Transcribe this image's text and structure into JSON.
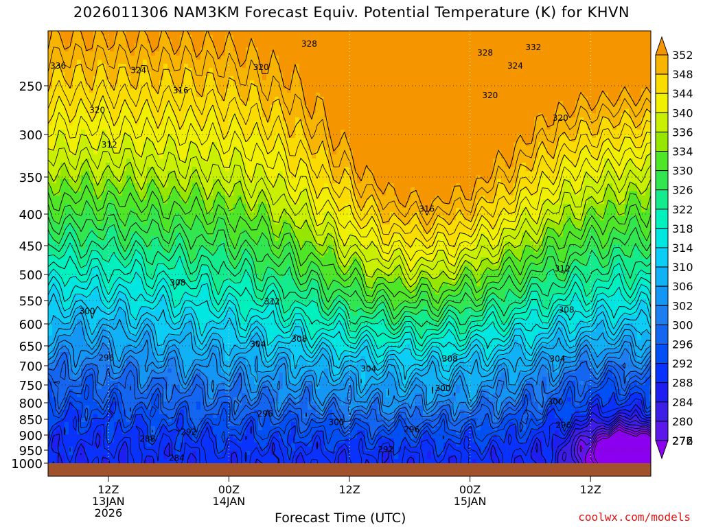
{
  "title": "2026011306 NAM3KM Forecast Equiv. Potential Temperature (K) for KHVN",
  "credit": "coolwx.com/models",
  "chart_data": {
    "type": "heatmap",
    "title": "2026011306 NAM3KM Forecast Equiv. Potential Temperature (K) for KHVN",
    "xlabel": "Forecast Time (UTC)",
    "ylabel": "",
    "x_range_hours": [
      0,
      60
    ],
    "y_axis": "pressure (mb)",
    "ylim": [
      1000,
      200
    ],
    "y_ticks": [
      250,
      300,
      350,
      400,
      450,
      500,
      550,
      600,
      650,
      700,
      750,
      800,
      850,
      900,
      950,
      1000
    ],
    "x_ticks": [
      {
        "hour": 6,
        "lines": [
          "12Z",
          "13JAN",
          "2026"
        ]
      },
      {
        "hour": 18,
        "lines": [
          "00Z",
          "14JAN"
        ]
      },
      {
        "hour": 30,
        "lines": [
          "12Z"
        ]
      },
      {
        "hour": 42,
        "lines": [
          "00Z",
          "15JAN"
        ]
      },
      {
        "hour": 54,
        "lines": [
          "12Z"
        ]
      }
    ],
    "colorbar": {
      "levels": [
        272,
        276,
        280,
        284,
        288,
        292,
        296,
        300,
        302,
        306,
        310,
        314,
        318,
        322,
        326,
        330,
        334,
        336,
        340,
        344,
        348,
        352
      ],
      "colors": [
        "#8c00f0",
        "#5a18ea",
        "#3c1ee6",
        "#1e1ef0",
        "#0a32ff",
        "#0050f5",
        "#1466f0",
        "#1e7ef0",
        "#1496f5",
        "#10b2f5",
        "#0ccdf5",
        "#00e6e1",
        "#00f0be",
        "#14eb8c",
        "#32e650",
        "#50e628",
        "#96e600",
        "#c8f000",
        "#f0f000",
        "#fadc00",
        "#f7b400",
        "#f59600"
      ]
    },
    "contour_labels": [
      {
        "value": "336",
        "hour": 1.0,
        "p": 232
      },
      {
        "value": "328",
        "hour": 26.0,
        "p": 212
      },
      {
        "value": "328",
        "hour": 43.5,
        "p": 220
      },
      {
        "value": "332",
        "hour": 48.3,
        "p": 215
      },
      {
        "value": "324",
        "hour": 9.0,
        "p": 236
      },
      {
        "value": "324",
        "hour": 46.5,
        "p": 232
      },
      {
        "value": "320",
        "hour": 21.2,
        "p": 233
      },
      {
        "value": "320",
        "hour": 44.0,
        "p": 260
      },
      {
        "value": "320",
        "hour": 51.0,
        "p": 283
      },
      {
        "value": "320",
        "hour": 4.9,
        "p": 275
      },
      {
        "value": "316",
        "hour": 13.2,
        "p": 255
      },
      {
        "value": "316",
        "hour": 37.7,
        "p": 393
      },
      {
        "value": "312",
        "hour": 6.1,
        "p": 312
      },
      {
        "value": "312",
        "hour": 22.3,
        "p": 552
      },
      {
        "value": "312",
        "hour": 51.2,
        "p": 490
      },
      {
        "value": "308",
        "hour": 12.9,
        "p": 516
      },
      {
        "value": "308",
        "hour": 25.0,
        "p": 634
      },
      {
        "value": "308",
        "hour": 40.0,
        "p": 683
      },
      {
        "value": "308",
        "hour": 51.6,
        "p": 570
      },
      {
        "value": "304",
        "hour": 20.9,
        "p": 646
      },
      {
        "value": "304",
        "hour": 31.9,
        "p": 708
      },
      {
        "value": "304",
        "hour": 50.7,
        "p": 683
      },
      {
        "value": "300",
        "hour": 3.9,
        "p": 573
      },
      {
        "value": "300",
        "hour": 39.3,
        "p": 760
      },
      {
        "value": "300",
        "hour": 50.5,
        "p": 797
      },
      {
        "value": "296",
        "hour": 5.8,
        "p": 680
      },
      {
        "value": "296",
        "hour": 21.6,
        "p": 833
      },
      {
        "value": "296",
        "hour": 36.2,
        "p": 883
      },
      {
        "value": "296",
        "hour": 51.3,
        "p": 868
      },
      {
        "value": "300",
        "hour": 28.7,
        "p": 860
      },
      {
        "value": "292",
        "hour": 14.0,
        "p": 890
      },
      {
        "value": "292",
        "hour": 33.6,
        "p": 948
      },
      {
        "value": "288",
        "hour": 9.9,
        "p": 912
      },
      {
        "value": "284",
        "hour": 12.8,
        "p": 980
      }
    ]
  }
}
